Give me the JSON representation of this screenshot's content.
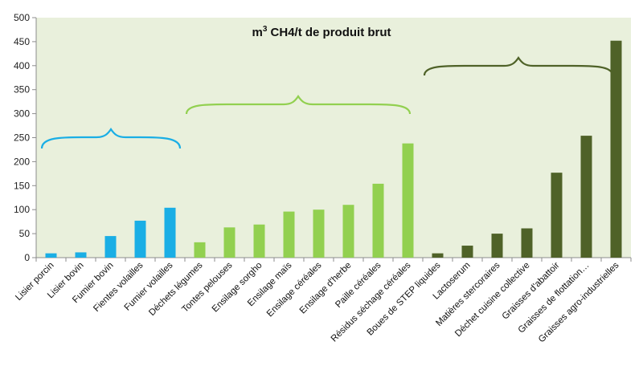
{
  "chart_data": {
    "type": "bar",
    "title_base": "m",
    "title_sup": "3",
    "title_rest": " CH4/t de produit brut",
    "ylim": [
      0,
      500
    ],
    "yticks": [
      "0",
      "50",
      "100",
      "150",
      "200",
      "250",
      "300",
      "350",
      "400",
      "450",
      "500"
    ],
    "grid": false,
    "plot_background": "#e9f0dc",
    "categories": [
      "Lisier porcin",
      "Lisier bovin",
      "Fumier bovin",
      "Fientes volailles",
      "Fumier volailles",
      "Déchets légumes",
      "Tontes pelouses",
      "Ensilage sorgho",
      "Ensilage maïs",
      "Ensilage céréales",
      "Ensilage d'herbe",
      "Paille céréales",
      "Résidus séchage céréales",
      "Boues de STEP liquides",
      "Lactoserum",
      "Matières stercoraires",
      "Déchet cuisine collective",
      "Graisses d'abattoir",
      "Graisses de flottation…",
      "Graisses agro-industrielles"
    ],
    "values": [
      9,
      11,
      45,
      77,
      104,
      32,
      63,
      69,
      96,
      100,
      110,
      154,
      238,
      9,
      25,
      50,
      61,
      177,
      254,
      452
    ],
    "groups": [
      {
        "color": "#1aaee5",
        "start": 0,
        "end": 4
      },
      {
        "color": "#92d050",
        "start": 5,
        "end": 12
      },
      {
        "color": "#4f6228",
        "start": 13,
        "end": 19
      }
    ]
  }
}
